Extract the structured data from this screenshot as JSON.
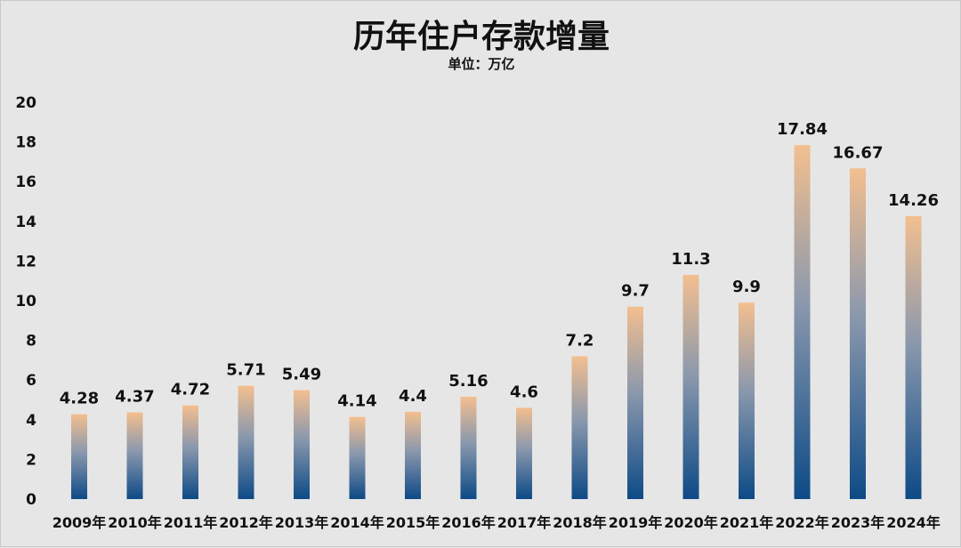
{
  "chart_data": {
    "type": "bar",
    "title": "历年住户存款增量",
    "subtitle": "单位：万亿",
    "categories": [
      "2009年",
      "2010年",
      "2011年",
      "2012年",
      "2013年",
      "2014年",
      "2015年",
      "2016年",
      "2017年",
      "2018年",
      "2019年",
      "2020年",
      "2021年",
      "2022年",
      "2023年",
      "2024年"
    ],
    "values": [
      4.28,
      4.37,
      4.72,
      5.71,
      5.49,
      4.14,
      4.4,
      5.16,
      4.6,
      7.2,
      9.7,
      11.3,
      9.9,
      17.84,
      16.67,
      14.26
    ],
    "data_labels": [
      "4.28",
      "4.37",
      "4.72",
      "5.71",
      "5.49",
      "4.14",
      "4.4",
      "5.16",
      "4.6",
      "7.2",
      "9.7",
      "11.3",
      "9.9",
      "17.84",
      "16.67",
      "14.26"
    ],
    "ylim": [
      0,
      20
    ],
    "yticks": [
      0,
      2,
      4,
      6,
      8,
      10,
      12,
      14,
      16,
      18,
      20
    ],
    "grid": false,
    "legend": "none",
    "colors": {
      "bar_top": "#f3bf8f",
      "bar_bottom": "#0d4a86",
      "background": "#e6e6e6"
    }
  }
}
